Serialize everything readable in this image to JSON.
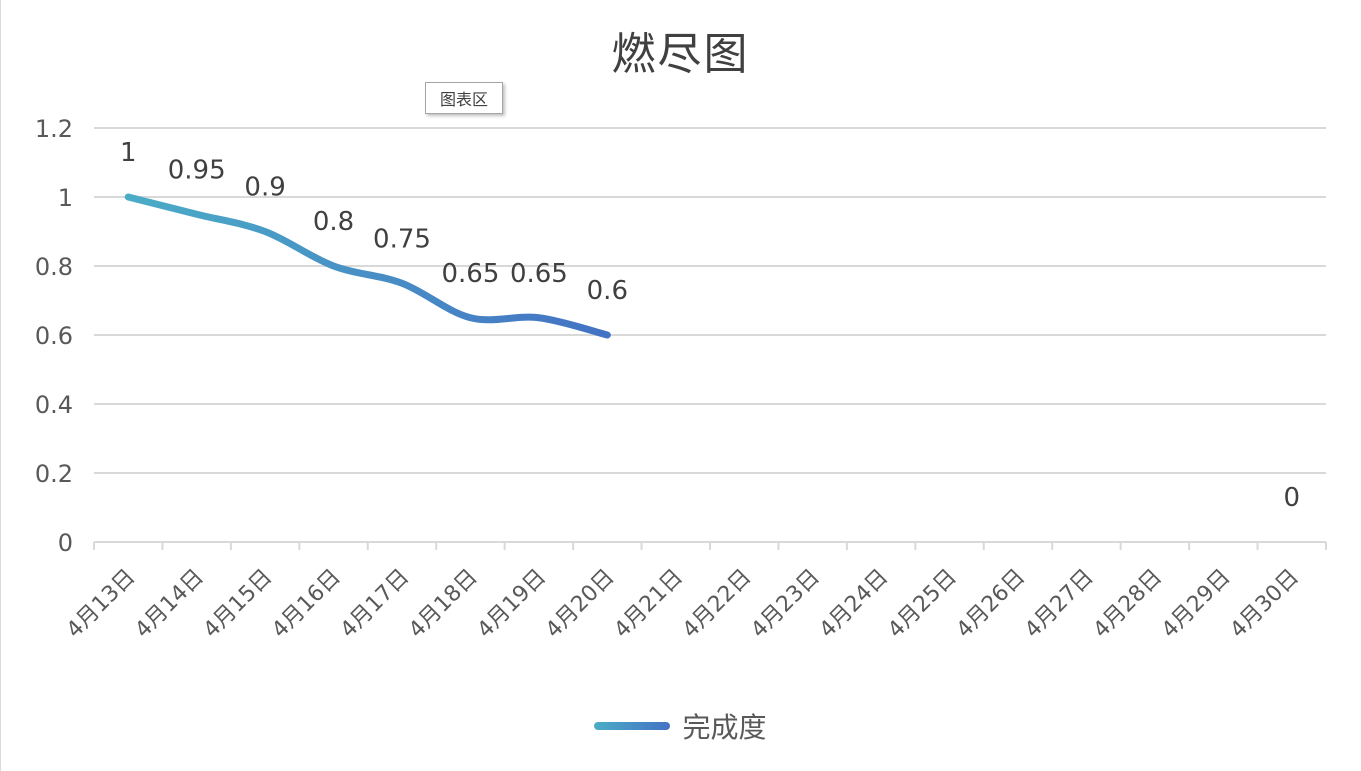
{
  "chart_data": {
    "type": "line",
    "title": "燃尽图",
    "tooltip": "图表区",
    "categories": [
      "4月13日",
      "4月14日",
      "4月15日",
      "4月16日",
      "4月17日",
      "4月18日",
      "4月19日",
      "4月20日",
      "4月21日",
      "4月22日",
      "4月23日",
      "4月24日",
      "4月25日",
      "4月26日",
      "4月27日",
      "4月28日",
      "4月29日",
      "4月30日"
    ],
    "series": [
      {
        "name": "完成度",
        "values": [
          1,
          0.95,
          0.9,
          0.8,
          0.75,
          0.65,
          0.65,
          0.6,
          null,
          null,
          null,
          null,
          null,
          null,
          null,
          null,
          null,
          0
        ],
        "labels": [
          "1",
          "0.95",
          "0.9",
          "0.8",
          "0.75",
          "0.65",
          "0.65",
          "0.6",
          "",
          "",
          "",
          "",
          "",
          "",
          "",
          "",
          "",
          "0"
        ],
        "color_start": "#4bacc6",
        "color_end": "#4472c4",
        "smooth": true
      }
    ],
    "yticks": [
      "0",
      "0.2",
      "0.4",
      "0.6",
      "0.8",
      "1",
      "1.2"
    ],
    "ylim": [
      0,
      1.2
    ],
    "grid": true,
    "legend_position": "bottom"
  }
}
